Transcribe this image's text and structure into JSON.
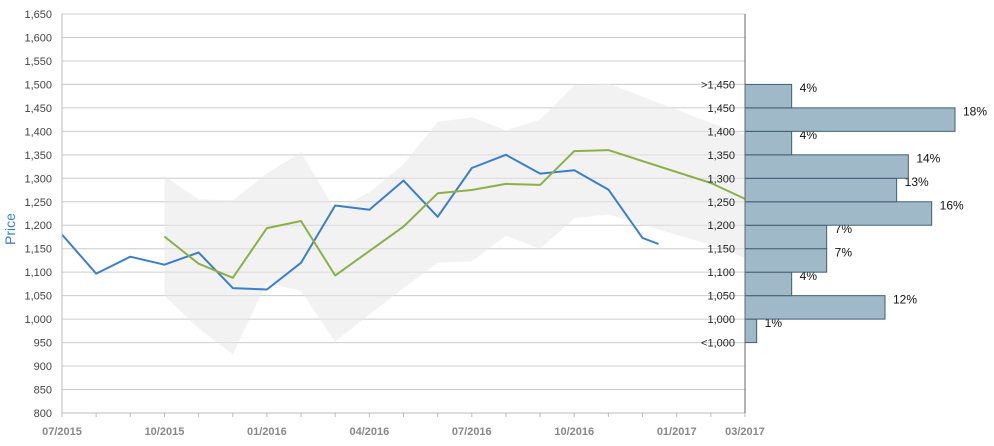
{
  "colors": {
    "price_line": "#3a7fc9",
    "forecast_line": "#8cb048",
    "band_fill": "#e8e8e8",
    "hist_bar": "#9fb9c8",
    "hist_stroke": "#3f5f70",
    "grid": "#cccccc"
  },
  "chart_data": {
    "type": "line",
    "ylabel": "Price",
    "ylim": [
      800,
      1650
    ],
    "yticks": [
      "800",
      "850",
      "900",
      "950",
      "1,000",
      "1,050",
      "1,100",
      "1,150",
      "1,200",
      "1,250",
      "1,300",
      "1,350",
      "1,400",
      "1,450",
      "1,500",
      "1,550",
      "1,600",
      "1,650"
    ],
    "yticks_values": [
      800,
      850,
      900,
      950,
      1000,
      1050,
      1100,
      1150,
      1200,
      1250,
      1300,
      1350,
      1400,
      1450,
      1500,
      1550,
      1600,
      1650
    ],
    "xlim": [
      "2015-07",
      "2017-03"
    ],
    "xticks": [
      {
        "date": "2015-07",
        "label": "07/2015"
      },
      {
        "date": "2015-10",
        "label": "10/2015"
      },
      {
        "date": "2016-01",
        "label": "01/2016"
      },
      {
        "date": "2016-04",
        "label": "04/2016"
      },
      {
        "date": "2016-07",
        "label": "07/2016"
      },
      {
        "date": "2016-10",
        "label": "10/2016"
      },
      {
        "date": "2017-01",
        "label": "01/2017"
      },
      {
        "date": "2017-03",
        "label": "03/2017"
      }
    ],
    "grid": true,
    "series": [
      {
        "values": [
          {
            "x": "2015-07",
            "y": 1180
          },
          {
            "x": "2015-08",
            "y": 1097
          },
          {
            "x": "2015-09",
            "y": 1133
          },
          {
            "x": "2015-10",
            "y": 1116
          },
          {
            "x": "2015-11",
            "y": 1142
          },
          {
            "x": "2015-12",
            "y": 1066
          },
          {
            "x": "2016-01",
            "y": 1063
          },
          {
            "x": "2016-02",
            "y": 1120
          },
          {
            "x": "2016-03",
            "y": 1242
          },
          {
            "x": "2016-04",
            "y": 1233
          },
          {
            "x": "2016-05",
            "y": 1295
          },
          {
            "x": "2016-06",
            "y": 1218
          },
          {
            "x": "2016-07",
            "y": 1322
          },
          {
            "x": "2016-08",
            "y": 1350
          },
          {
            "x": "2016-09",
            "y": 1310
          },
          {
            "x": "2016-10",
            "y": 1317
          },
          {
            "x": "2016-11",
            "y": 1276
          },
          {
            "x": "2016-12",
            "y": 1173
          },
          {
            "x": "2016-12-15",
            "y": 1160
          }
        ]
      },
      {
        "values": [
          {
            "x": "2015-10",
            "y": 1176
          },
          {
            "x": "2015-11",
            "y": 1118
          },
          {
            "x": "2015-12",
            "y": 1088
          },
          {
            "x": "2016-01",
            "y": 1194
          },
          {
            "x": "2016-02",
            "y": 1209
          },
          {
            "x": "2016-03",
            "y": 1093
          },
          {
            "x": "2016-05",
            "y": 1197
          },
          {
            "x": "2016-06",
            "y": 1268
          },
          {
            "x": "2016-07",
            "y": 1275
          },
          {
            "x": "2016-08",
            "y": 1288
          },
          {
            "x": "2016-09",
            "y": 1286
          },
          {
            "x": "2016-10",
            "y": 1358
          },
          {
            "x": "2016-11",
            "y": 1360
          },
          {
            "x": "2017-02",
            "y": 1290
          },
          {
            "x": "2017-03",
            "y": 1256
          }
        ]
      }
    ],
    "band": {
      "upper": [
        {
          "x": "2015-10",
          "y": 1305
        },
        {
          "x": "2015-11",
          "y": 1255
        },
        {
          "x": "2015-12",
          "y": 1253
        },
        {
          "x": "2016-01",
          "y": 1310
        },
        {
          "x": "2016-02",
          "y": 1356
        },
        {
          "x": "2016-03",
          "y": 1232
        },
        {
          "x": "2016-04",
          "y": 1270
        },
        {
          "x": "2016-05",
          "y": 1330
        },
        {
          "x": "2016-06",
          "y": 1420
        },
        {
          "x": "2016-07",
          "y": 1430
        },
        {
          "x": "2016-08",
          "y": 1402
        },
        {
          "x": "2016-09",
          "y": 1425
        },
        {
          "x": "2016-10",
          "y": 1498
        },
        {
          "x": "2016-11",
          "y": 1502
        },
        {
          "x": "2017-02",
          "y": 1418
        },
        {
          "x": "2017-03",
          "y": 1393
        }
      ],
      "lower": [
        {
          "x": "2015-10",
          "y": 1050
        },
        {
          "x": "2015-11",
          "y": 980
        },
        {
          "x": "2015-12",
          "y": 925
        },
        {
          "x": "2016-01",
          "y": 1078
        },
        {
          "x": "2016-02",
          "y": 1060
        },
        {
          "x": "2016-03",
          "y": 952
        },
        {
          "x": "2016-04",
          "y": 1010
        },
        {
          "x": "2016-05",
          "y": 1066
        },
        {
          "x": "2016-06",
          "y": 1120
        },
        {
          "x": "2016-07",
          "y": 1123
        },
        {
          "x": "2016-08",
          "y": 1178
        },
        {
          "x": "2016-09",
          "y": 1150
        },
        {
          "x": "2016-10",
          "y": 1215
        },
        {
          "x": "2016-11",
          "y": 1223
        },
        {
          "x": "2017-02",
          "y": 1158
        },
        {
          "x": "2017-03",
          "y": 1130
        }
      ]
    },
    "histogram": [
      {
        "label": "<1,000",
        "y": 975,
        "percent": 1,
        "percent_label": "1%"
      },
      {
        "label": "1,000",
        "y": 1025,
        "percent": 12,
        "percent_label": "12%"
      },
      {
        "label": "1,050",
        "y": 1075,
        "percent": 4,
        "percent_label": "4%"
      },
      {
        "label": "1,100",
        "y": 1125,
        "percent": 7,
        "percent_label": "7%"
      },
      {
        "label": "1,150",
        "y": 1175,
        "percent": 7,
        "percent_label": "7%"
      },
      {
        "label": "1,200",
        "y": 1225,
        "percent": 16,
        "percent_label": "16%"
      },
      {
        "label": "1,250",
        "y": 1275,
        "percent": 13,
        "percent_label": "13%"
      },
      {
        "label": "1,300",
        "y": 1325,
        "percent": 14,
        "percent_label": "14%"
      },
      {
        "label": "1,350",
        "y": 1375,
        "percent": 4,
        "percent_label": "4%"
      },
      {
        "label": "1,400",
        "y": 1425,
        "percent": 18,
        "percent_label": "18%"
      },
      {
        "label": "1,450",
        "y": 1475,
        "percent": 4,
        "percent_label": "4%"
      }
    ],
    "histogram_top_label": ">1,450"
  }
}
